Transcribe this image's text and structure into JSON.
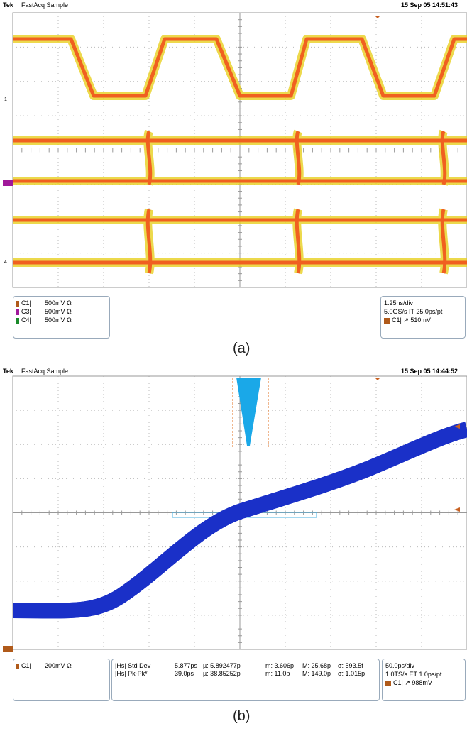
{
  "panels": [
    {
      "header": {
        "brand": "Tek",
        "mode": "FastAcq Sample",
        "timestamp": "15 Sep 05 14:51:43"
      },
      "markers": [
        "1",
        "4"
      ],
      "channels": [
        {
          "label": "C1|",
          "scale": "500mV Ω"
        },
        {
          "label": "C3|",
          "scale": "500mV Ω"
        },
        {
          "label": "C4|",
          "scale": "500mV Ω"
        }
      ],
      "settings": [
        "1.25ns/div",
        "5.0GS/s IT 25.0ps/pt"
      ],
      "trigger": {
        "source": "C1|",
        "level": "↗ 510mV"
      },
      "caption": "(a)"
    },
    {
      "header": {
        "brand": "Tek",
        "mode": "FastAcq Sample",
        "timestamp": "15 Sep 05 14:44:52"
      },
      "channels": [
        {
          "label": "C1|",
          "scale": "200mV Ω"
        }
      ],
      "measurements": [
        [
          "|Hs| Std Dev",
          "5.877ps",
          "µ: 5.892477p",
          "m: 3.606p",
          "M: 25.68p",
          "σ: 593.5f"
        ],
        [
          "|Hs| Pk-Pk*",
          "39.0ps",
          "µ: 38.85252p",
          "m: 11.0p",
          "M: 149.0p",
          "σ: 1.015p"
        ]
      ],
      "settings": [
        "50.0ps/div",
        "1.0TS/s ET 1.0ps/pt"
      ],
      "trigger": {
        "source": "C1|",
        "level": "↗ 988mV"
      },
      "caption": "(b)"
    }
  ]
}
